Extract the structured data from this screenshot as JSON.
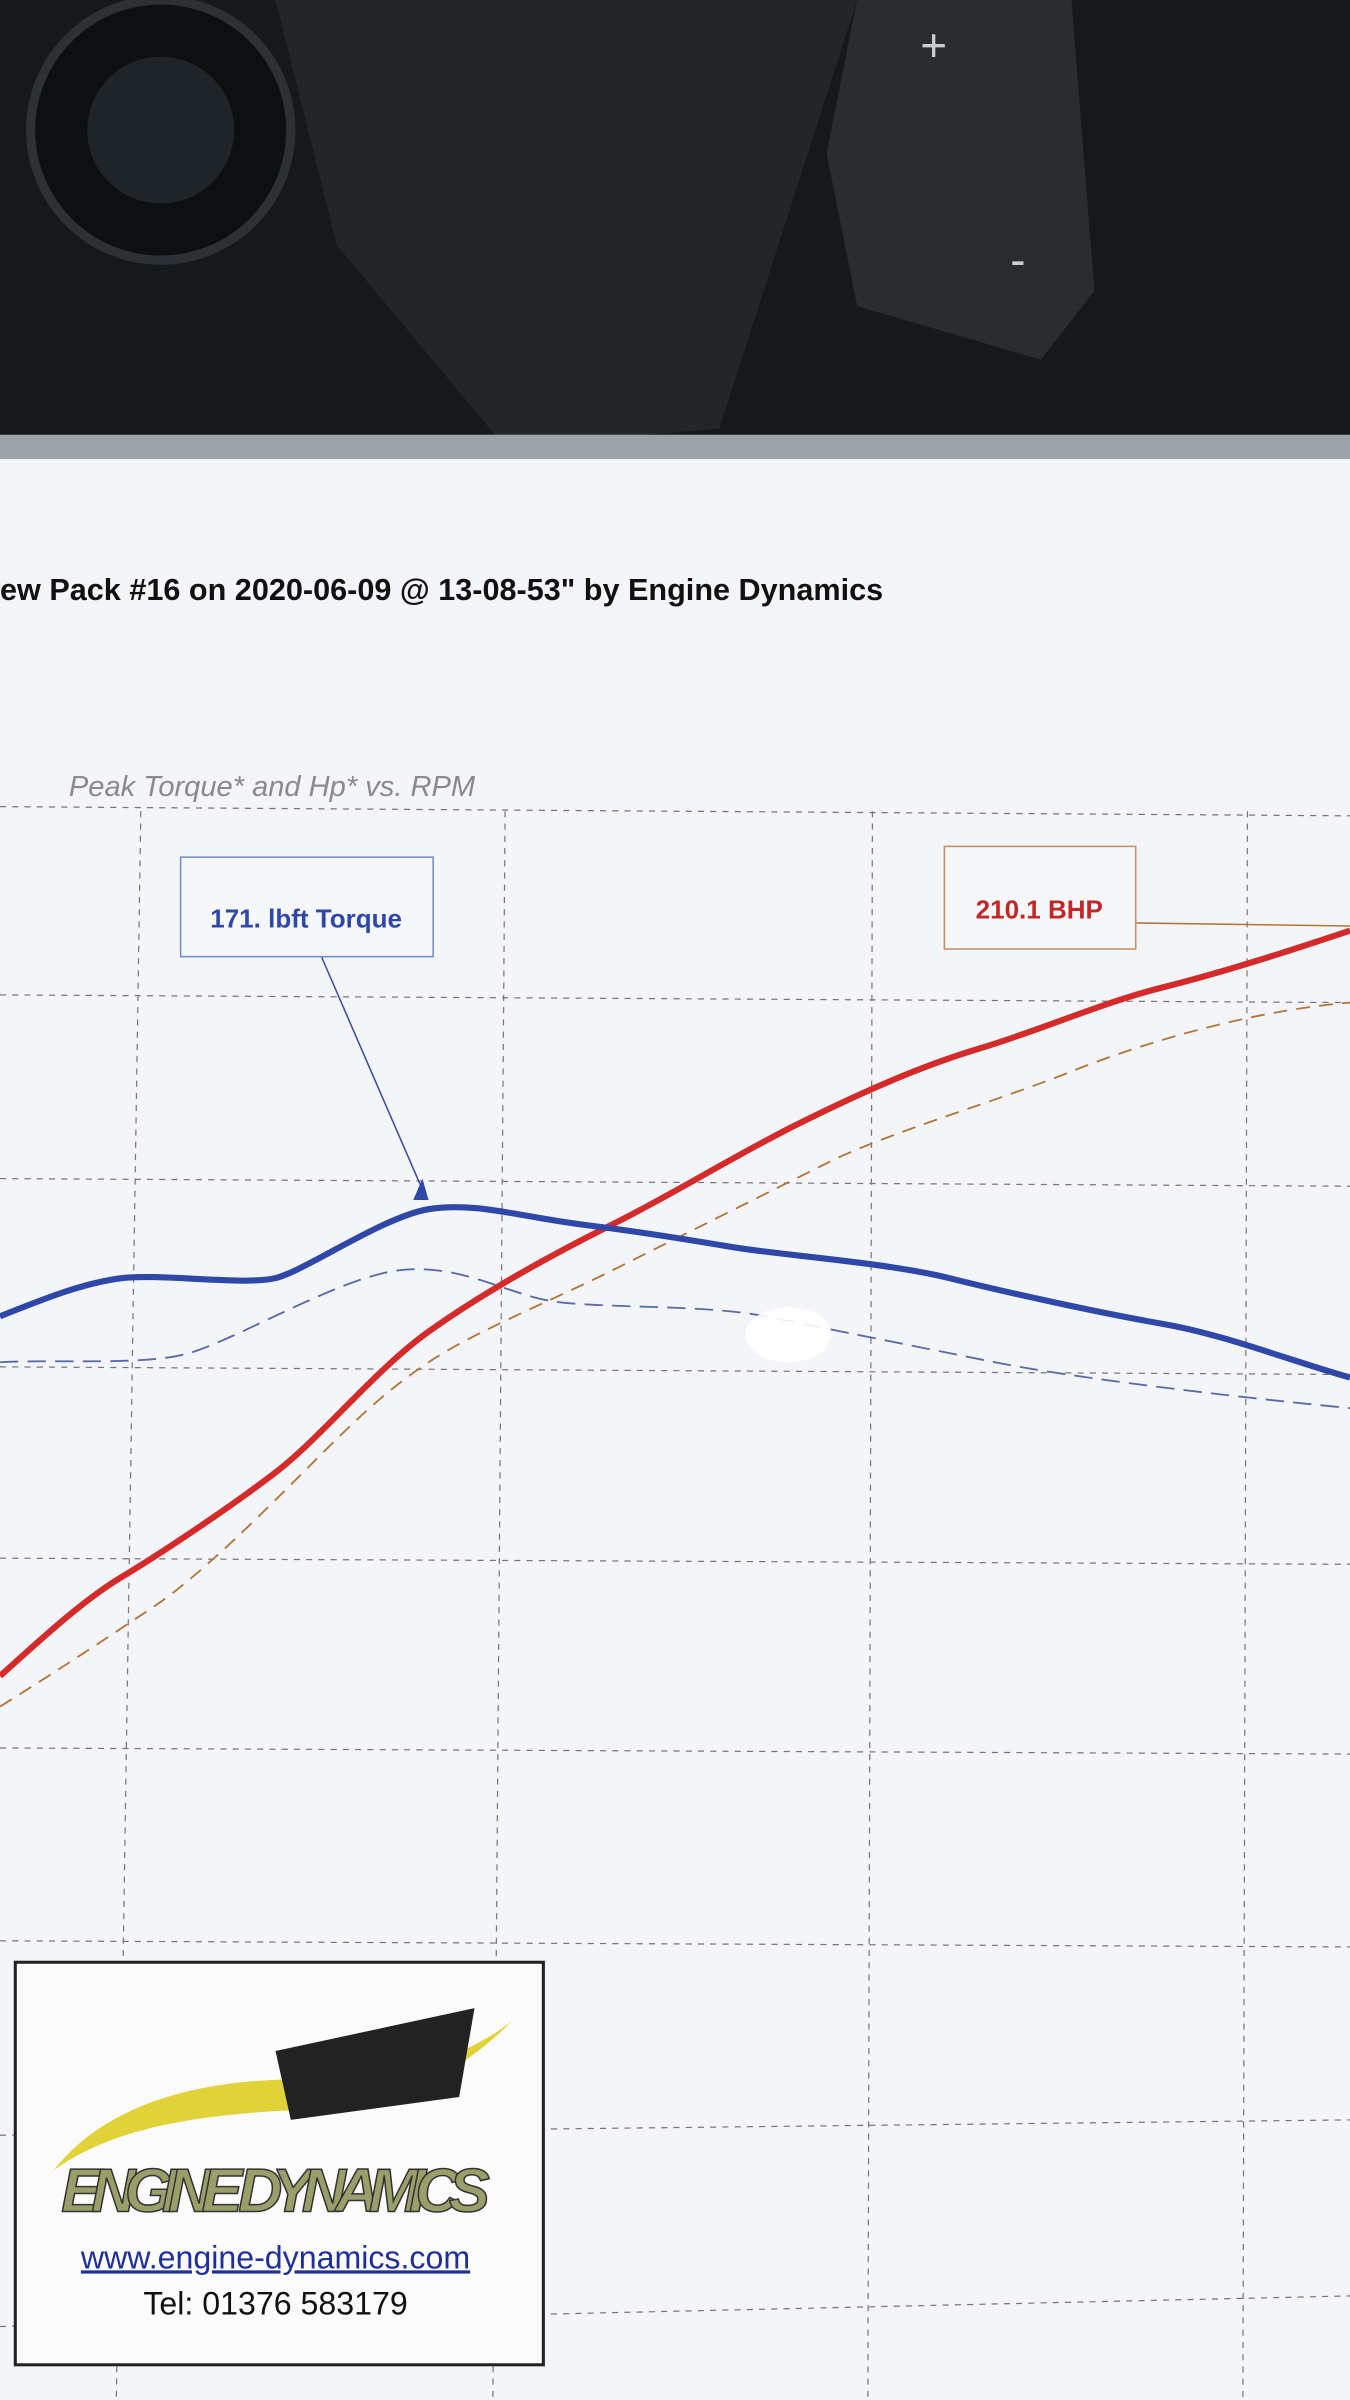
{
  "header": {
    "title": "ew Pack #16 on 2020-06-09 @ 13-08-53\" by Engine Dynamics",
    "subtitle": "Peak Torque* and Hp* vs. RPM"
  },
  "annotations": {
    "torque": "171. lbft Torque",
    "power": "210.1 BHP"
  },
  "logo": {
    "name": "ENGINE DYNAMICS",
    "url": "www.engine-dynamics.com",
    "phone": "Tel: 01376 583179"
  },
  "controls": [
    "+",
    "-"
  ]
}
